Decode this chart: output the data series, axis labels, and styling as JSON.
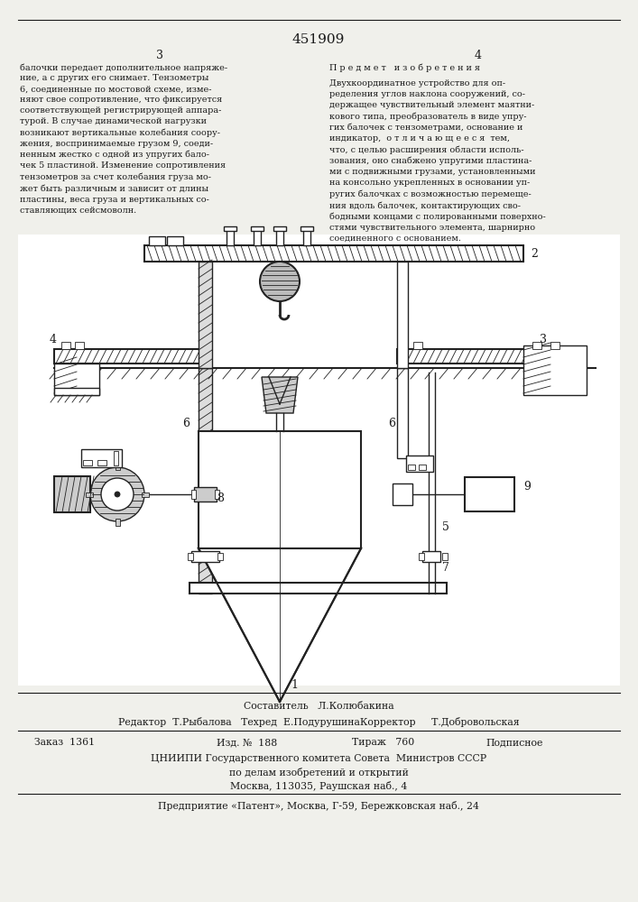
{
  "patent_number": "451909",
  "background_color": "#f0f0eb",
  "text_color": "#1a1a1a",
  "draw_color": "#222222",
  "hatch_color": "#444444",
  "left_column_text": "балочки передает дополнительное напряже-\nние, а с других его снимает. Тензометры\n6, соединенные по мостовой схеме, изме-\nняют свое сопротивление, что фиксируется\nсоответствующей регистрирующей аппара-\nтурой. В случае динамической нагрузки\nвозникают вертикальные колебания соору-\nжения, воспринимаемые грузом 9, соеди-\nненным жестко с одной из упругих бало-\nчек 5 пластиной. Изменение сопротивления\nтензометров за счет колебания груза мо-\nжет быть различным и зависит от длины\nпластины, веса груза и вертикальных со-\nставляющих сейсмоволн.",
  "right_column_header": "П р е д м е т   и з о б р е т е н и я",
  "right_column_text": "Двухкоординатное устройство для оп-\nределения углов наклона сооружений, со-\nдержащее чувствительный элемент маятни-\nкового типа, преобразователь в виде упру-\nгих балочек с тензометрами, основание и\nиндикатор,  о т л и ч а ю щ е е с я  тем,\nчто, с целью расширения области исполь-\nзования, оно снабжено упругими пластина-\nми с подвижными грузами, установленными\nна консольно укрепленных в основании уп-\nругих балочках с возможностью перемеще-\nния вдоль балочек, контактирующих сво-\nбодными концами с полированными поверхно-\nстями чувствительного элемента, шарнирно\nсоединенного с основанием.",
  "footer_compiler": "Составитель   Л.Колюбакина",
  "footer_editor": "Редактор  Т.Рыбалова   Техред  Е.ПодурушинаКорректор     Т.Добровольская",
  "footer_order": "Заказ  1361",
  "footer_edition": "Изд. №  188",
  "footer_print": "Тираж   760",
  "footer_subscription": "Подписное",
  "footer_org1": "ЦНИИПИ Государственного комитета Совета  Министров СССР",
  "footer_org2": "по делам изобретений и открытий",
  "footer_address1": "Москва, 113035, Раушская наб., 4",
  "footer_enterprise": "Предприятие «Патент», Москва, Г-59, Бережковская наб., 24"
}
